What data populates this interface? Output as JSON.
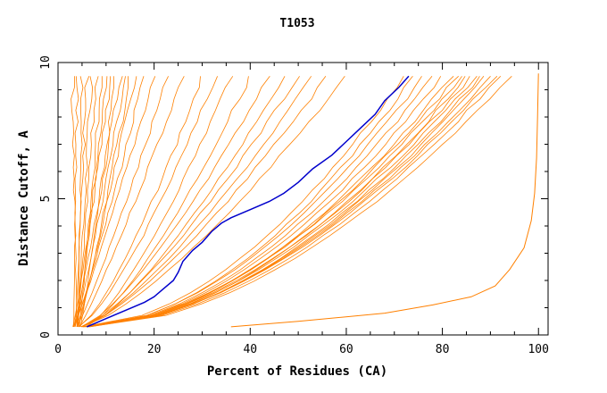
{
  "chart_data": {
    "type": "line",
    "title": "T1053",
    "xlabel": "Percent of Residues (CA)",
    "ylabel": "Distance Cutoff, A",
    "xlim": [
      0,
      102
    ],
    "ylim": [
      0,
      10
    ],
    "xticks": [
      0,
      20,
      40,
      60,
      80,
      100
    ],
    "yticks": [
      0,
      5,
      10
    ],
    "grid": false,
    "colors": {
      "others": "#ff8000",
      "highlight": "#0000cc"
    },
    "highlight": {
      "points": [
        [
          6,
          0.3
        ],
        [
          10,
          0.6
        ],
        [
          14,
          0.9
        ],
        [
          18,
          1.2
        ],
        [
          20,
          1.4
        ],
        [
          22,
          1.7
        ],
        [
          24,
          2.0
        ],
        [
          25,
          2.3
        ],
        [
          26,
          2.7
        ],
        [
          28,
          3.1
        ],
        [
          30,
          3.4
        ],
        [
          32,
          3.8
        ],
        [
          34,
          4.1
        ],
        [
          36,
          4.3
        ],
        [
          40,
          4.6
        ],
        [
          44,
          4.9
        ],
        [
          47,
          5.2
        ],
        [
          50,
          5.6
        ],
        [
          53,
          6.1
        ],
        [
          57,
          6.6
        ],
        [
          60,
          7.1
        ],
        [
          63,
          7.6
        ],
        [
          66,
          8.1
        ],
        [
          68,
          8.6
        ],
        [
          71,
          9.1
        ],
        [
          73,
          9.5
        ]
      ]
    },
    "series_groups": {
      "steep": [
        [
          3,
          9.5
        ],
        [
          4,
          9.5
        ],
        [
          5,
          9.5
        ],
        [
          6,
          9.5
        ],
        [
          7,
          9.5
        ],
        [
          8,
          9.5
        ],
        [
          9,
          9.5
        ],
        [
          10,
          9.5
        ],
        [
          11,
          9.5
        ],
        [
          12,
          9.5
        ],
        [
          13,
          9.5
        ],
        [
          14,
          9.5
        ],
        [
          15,
          9.5
        ],
        [
          16,
          9.5
        ],
        [
          18,
          9.5
        ],
        [
          20,
          9.5
        ],
        [
          23,
          9.5
        ],
        [
          26,
          9.5
        ]
      ],
      "mid": [
        [
          30,
          9.5
        ],
        [
          33,
          9.5
        ],
        [
          36,
          9.5
        ],
        [
          40,
          9.5
        ],
        [
          44,
          9.5
        ],
        [
          47,
          9.5
        ],
        [
          50,
          9.5
        ],
        [
          53,
          9.5
        ],
        [
          56,
          9.5
        ],
        [
          60,
          9.5
        ]
      ],
      "main": [
        [
          72,
          9.5
        ],
        [
          74,
          9.5
        ],
        [
          76,
          9.5
        ],
        [
          78,
          9.5
        ],
        [
          80,
          9.5
        ],
        [
          82,
          9.5
        ],
        [
          83,
          9.5
        ],
        [
          84,
          9.5
        ],
        [
          85,
          9.5
        ],
        [
          86,
          9.5
        ],
        [
          87,
          9.5
        ],
        [
          88,
          9.5
        ],
        [
          89,
          9.5
        ],
        [
          90,
          9.5
        ],
        [
          91,
          9.5
        ],
        [
          92,
          9.5
        ],
        [
          94,
          9.5
        ]
      ]
    },
    "best": [
      [
        36,
        0.3
      ],
      [
        50,
        0.5
      ],
      [
        68,
        0.8
      ],
      [
        78,
        1.1
      ],
      [
        86,
        1.4
      ],
      [
        91,
        1.8
      ],
      [
        94,
        2.4
      ],
      [
        97,
        3.2
      ],
      [
        98.5,
        4.2
      ],
      [
        99.2,
        5.2
      ],
      [
        99.6,
        6.5
      ],
      [
        99.8,
        8.0
      ],
      [
        100,
        9.6
      ]
    ]
  }
}
